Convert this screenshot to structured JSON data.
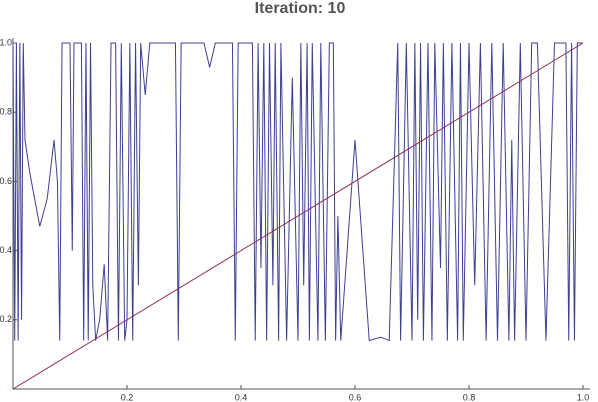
{
  "chart_data": {
    "type": "line",
    "title": "Iteration: 10",
    "series": [
      {
        "color": "#3f3f91",
        "x": [
          0,
          0.003,
          0.006,
          0.009,
          0.012,
          0.015,
          0.018,
          0.021,
          0.03,
          0.047,
          0.06,
          0.072,
          0.078,
          0.082,
          0.086,
          0.1,
          0.104,
          0.107,
          0.12,
          0.124,
          0.128,
          0.132,
          0.136,
          0.14,
          0.145,
          0.152,
          0.16,
          0.166,
          0.172,
          0.18,
          0.185,
          0.19,
          0.196,
          0.2,
          0.205,
          0.21,
          0.215,
          0.22,
          0.224,
          0.232,
          0.24,
          0.285,
          0.29,
          0.295,
          0.335,
          0.345,
          0.355,
          0.385,
          0.39,
          0.395,
          0.42,
          0.425,
          0.43,
          0.435,
          0.44,
          0.445,
          0.45,
          0.456,
          0.46,
          0.466,
          0.47,
          0.48,
          0.49,
          0.5,
          0.505,
          0.51,
          0.516,
          0.52,
          0.525,
          0.535,
          0.54,
          0.548,
          0.555,
          0.562,
          0.566,
          0.57,
          0.575,
          0.6,
          0.625,
          0.645,
          0.66,
          0.675,
          0.68,
          0.69,
          0.7,
          0.705,
          0.71,
          0.715,
          0.72,
          0.728,
          0.735,
          0.74,
          0.75,
          0.755,
          0.762,
          0.77,
          0.78,
          0.785,
          0.79,
          0.8,
          0.81,
          0.82,
          0.83,
          0.84,
          0.85,
          0.86,
          0.87,
          0.875,
          0.88,
          0.89,
          0.9,
          0.91,
          0.92,
          0.935,
          0.95,
          0.97,
          0.975,
          0.98,
          0.985,
          0.99,
          1
        ],
        "values": [
          1,
          0.14,
          1,
          0.14,
          1,
          0.2,
          1,
          0.72,
          0.62,
          0.47,
          0.55,
          0.72,
          0.6,
          0.14,
          1,
          1,
          0.4,
          1,
          1,
          0.14,
          1,
          0.14,
          1,
          0.3,
          0.14,
          0.2,
          0.36,
          0.14,
          1,
          1,
          0.14,
          1,
          0.14,
          0.2,
          1,
          0.14,
          1,
          0.3,
          1,
          0.85,
          1,
          1,
          0.14,
          1,
          1,
          0.93,
          1,
          1,
          0.14,
          1,
          1,
          0.14,
          1,
          0.35,
          1,
          0.14,
          1,
          0.3,
          1,
          0.14,
          1,
          0.14,
          0.9,
          0.14,
          1,
          0.3,
          1,
          0.14,
          1,
          0.14,
          1,
          0.14,
          1,
          1,
          0.14,
          0.5,
          0.14,
          0.72,
          0.14,
          0.15,
          0.14,
          1,
          0.14,
          1,
          0.14,
          1,
          0.2,
          1,
          0.14,
          1,
          0.14,
          1,
          0.35,
          1,
          0.14,
          1,
          0.14,
          1,
          0.14,
          1,
          0.3,
          1,
          0.14,
          1,
          0.14,
          1,
          0.14,
          0.72,
          0.14,
          1,
          0.14,
          1,
          1,
          0.14,
          1,
          1,
          0.14,
          1,
          0.14,
          1,
          1
        ]
      },
      {
        "color": "#8e2d5a",
        "x": [
          0,
          1
        ],
        "values": [
          0,
          1
        ]
      }
    ],
    "xlim": [
      0,
      1
    ],
    "ylim": [
      0,
      1
    ],
    "xticks": [
      0.2,
      0.4,
      0.6,
      0.8,
      {
        "value": 1,
        "label": "1.0"
      }
    ],
    "yticks": [
      0.2,
      0.4,
      0.6,
      0.8,
      {
        "value": 1,
        "label": "1.0"
      }
    ]
  }
}
